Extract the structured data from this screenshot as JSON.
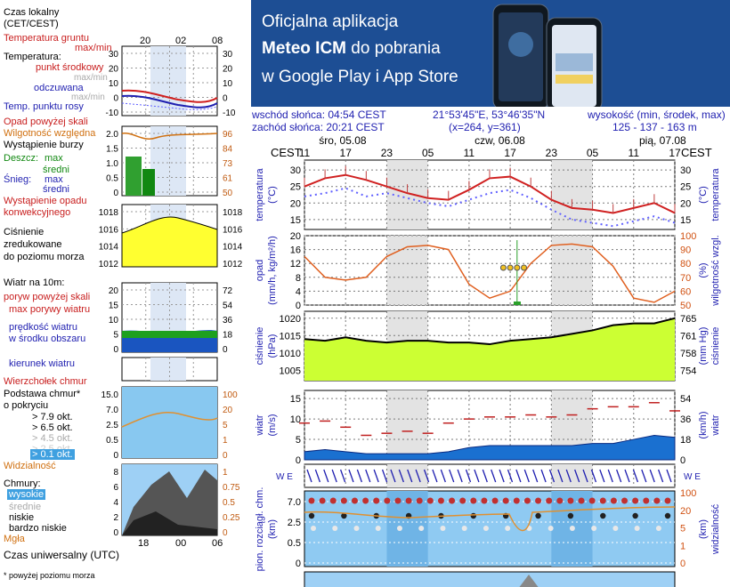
{
  "banner": {
    "line1": "Oficjalna aplikacja",
    "line2_bold": "Meteo ICM",
    "line2_rest": " do pobrania",
    "line3": "w Google Play i App Store",
    "logo": "icmmeteo",
    "logo_mark": "M°"
  },
  "legend_left": {
    "local_time": "Czas lokalny",
    "local_time_zone": "(CET/CEST)",
    "local_hours": [
      "20",
      "02",
      "08"
    ],
    "ground_temp": "Temperatura gruntu",
    "ground_maxmin": "max/min",
    "temperature": "Temperatura:",
    "mid_point": "punkt środkowy",
    "mid_maxmin": "max/min",
    "feels_like": "odczuwana",
    "feels_maxmin": "max/min",
    "dew_point": "Temp. punktu rosy",
    "precip_above": "Opad powyżej skali",
    "rel_humidity": "Wilgotność względna",
    "storm": "Wystąpienie burzy",
    "rain": "Deszcz:",
    "rain_max": "max",
    "rain_avg": "średni",
    "snow": "Śnieg:",
    "snow_max": "max",
    "snow_avg": "średni",
    "conv_precip1": "Wystąpienie opadu",
    "conv_precip2": "konwekcyjnego",
    "pressure1": "Ciśnienie",
    "pressure2": "zredukowane",
    "pressure3": "do poziomu morza",
    "wind_title": "Wiatr na 10m:",
    "gust_above": "poryw powyżej skali",
    "gust_max": "max porywy wiatru",
    "wind_avg1": "prędkość wiatru",
    "wind_avg2": "w środku obszaru",
    "wind_dir": "kierunek wiatru",
    "cloud_top": "Wierzchołek chmur",
    "cloud_base1": "Podstawa chmur*",
    "cloud_base2": "o pokryciu",
    "okt1": "> 7.9 okt.",
    "okt2": "> 6.5 okt.",
    "okt3": "> 4.5 okt.",
    "okt4": "> 2.5 okt.",
    "okt5": "> 0.1 okt.",
    "visibility": "Widzialność",
    "clouds": "Chmury:",
    "cl_high": "wysokie",
    "cl_mid": "średnie",
    "cl_low": "niskie",
    "cl_vlow": "bardzo niskie",
    "fog": "Mgła",
    "utc_hours": [
      "18",
      "00",
      "06"
    ],
    "utc": "Czas uniwersalny (UTC)",
    "footnote": "* powyżej poziomu morza",
    "axes": {
      "temp_l": [
        "30",
        "20",
        "10",
        "0",
        "-10"
      ],
      "temp_r": [
        "30",
        "20",
        "10",
        "0",
        "-10"
      ],
      "prec_l": [
        "2.0",
        "1.5",
        "1.0",
        "0.5",
        "0"
      ],
      "prec_r": [
        "96",
        "84",
        "73",
        "61",
        "50"
      ],
      "pres_l": [
        "1018",
        "1016",
        "1014",
        "1012"
      ],
      "pres_r": [
        "1018",
        "1016",
        "1014",
        "1012"
      ],
      "wind_l": [
        "20",
        "15",
        "10",
        "5",
        "0"
      ],
      "wind_r": [
        "72",
        "54",
        "36",
        "18",
        "0"
      ],
      "cb_l": [
        "15.0",
        "7.0",
        "2.5",
        "0.5",
        "0"
      ],
      "cb_r": [
        "100",
        "20",
        "5",
        "1",
        "0"
      ],
      "cl_l": [
        "8",
        "6",
        "4",
        "2",
        "0"
      ],
      "cl_r": [
        "1",
        "0.75",
        "0.5",
        "0.25",
        "0"
      ]
    }
  },
  "info": {
    "sunrise": "wschód słońca: 04:54 CEST",
    "sunset": "zachód słońca: 20:21 CEST",
    "coords": "21°53'45\"E, 53°46'35\"N",
    "grid": "(x=264,  y=361)",
    "elev_title": "wysokość (min, środek, max)",
    "elev_values": "125 - 137 - 163 m"
  },
  "main": {
    "cest": "CEST",
    "days": [
      "śro, 05.08",
      "czw, 06.08",
      "pią, 07.08"
    ],
    "hours": [
      "11",
      "17",
      "23",
      "05",
      "11",
      "17",
      "23",
      "05",
      "11",
      "17"
    ],
    "temp_label": "temperatura",
    "temp_unit": "(°C)",
    "temp_ticks": [
      "30",
      "25",
      "20",
      "15"
    ],
    "prec_label": "opad",
    "prec_unit": "(mm/h, kg/m²/h)",
    "prec_ticks": [
      "20",
      "16",
      "12",
      "8",
      "4",
      "0"
    ],
    "hum_label": "wilgotność wzgl.",
    "hum_unit": "(%)",
    "hum_ticks": [
      "100",
      "90",
      "80",
      "70",
      "60",
      "50"
    ],
    "pres_label": "ciśnienie",
    "pres_unit": "(hPa)",
    "pres_ticks": [
      "1020",
      "1015",
      "1010",
      "1005"
    ],
    "pres_unit_r": "(mm Hg)",
    "pres_ticks_r": [
      "765",
      "761",
      "758",
      "754"
    ],
    "wind_label": "wiatr",
    "wind_unit": "(m/s)",
    "wind_ticks": [
      "15",
      "10",
      "5",
      "0"
    ],
    "wind_unit_r": "(km/h)",
    "wind_ticks_r": [
      "54",
      "36",
      "18",
      "0"
    ],
    "cb_label": "pion. rozciągł. chm.",
    "cb_unit": "(km)",
    "cb_ticks": [
      "7.0",
      "2.5",
      "0.5",
      "0"
    ],
    "vis_label": "widzialność",
    "vis_ticks": [
      "100",
      "20",
      "5",
      "1",
      "0"
    ]
  },
  "chart_data": [
    {
      "type": "line",
      "title": "temperatura",
      "ylabel": "(°C)",
      "x": [
        "11",
        "14",
        "17",
        "20",
        "23",
        "02",
        "05",
        "08",
        "11",
        "14",
        "17",
        "20",
        "23",
        "02",
        "05",
        "08",
        "11",
        "14",
        "17"
      ],
      "ylim": [
        12,
        33
      ],
      "series": [
        {
          "values": [
            25,
            27.5,
            28.5,
            27,
            25,
            23,
            21.5,
            21,
            24,
            27.5,
            28,
            25,
            21,
            18.5,
            18,
            17,
            18.5,
            20,
            17
          ]
        },
        {
          "values": [
            22,
            23,
            24.5,
            22,
            23,
            21.5,
            20,
            19,
            21,
            23,
            24,
            21.5,
            18,
            15,
            14,
            13,
            14.5,
            16,
            14
          ]
        }
      ]
    },
    {
      "type": "line",
      "title": "opad",
      "ylabel": "(mm/h, kg/m²/h)",
      "ylim": [
        0,
        20
      ],
      "x": [
        "11",
        "14",
        "17",
        "20",
        "23",
        "02",
        "05",
        "08",
        "11",
        "14",
        "17",
        "20",
        "23",
        "02",
        "05",
        "08",
        "11",
        "14",
        "17"
      ],
      "series": [
        {
          "values": [
            85,
            70,
            68,
            70,
            85,
            92,
            93,
            90,
            65,
            55,
            60,
            80,
            93,
            94,
            92,
            78,
            55,
            52,
            60
          ]
        }
      ]
    },
    {
      "type": "area",
      "title": "ciśnienie",
      "ylabel": "(hPa)",
      "ylim": [
        1002,
        1022
      ],
      "x": [
        "11",
        "14",
        "17",
        "20",
        "23",
        "02",
        "05",
        "08",
        "11",
        "14",
        "17",
        "20",
        "23",
        "02",
        "05",
        "08",
        "11",
        "14",
        "17"
      ],
      "series": [
        {
          "values": [
            1014,
            1013.5,
            1014.5,
            1013.5,
            1013,
            1013.5,
            1013.5,
            1013,
            1013,
            1012.5,
            1013.5,
            1014,
            1014.5,
            1015.5,
            1016.5,
            1018,
            1018.5,
            1018.5,
            1020
          ]
        }
      ]
    },
    {
      "type": "area",
      "title": "wiatr",
      "ylabel": "(m/s)",
      "ylim": [
        0,
        17
      ],
      "x": [
        "11",
        "14",
        "17",
        "20",
        "23",
        "02",
        "05",
        "08",
        "11",
        "14",
        "17",
        "20",
        "23",
        "02",
        "05",
        "08",
        "11",
        "14",
        "17"
      ],
      "series": [
        {
          "values": [
            2,
            2.5,
            2,
            1.5,
            1.5,
            1.5,
            1.5,
            2,
            3,
            3.5,
            3.5,
            3.5,
            3.5,
            3.5,
            4,
            4,
            5,
            6,
            5.5
          ]
        },
        {
          "values": [
            9,
            9.5,
            8,
            6,
            6.5,
            7,
            6.5,
            9,
            10,
            10.5,
            10.5,
            11,
            10.5,
            11,
            12.5,
            13,
            13,
            14,
            12
          ]
        }
      ]
    }
  ]
}
